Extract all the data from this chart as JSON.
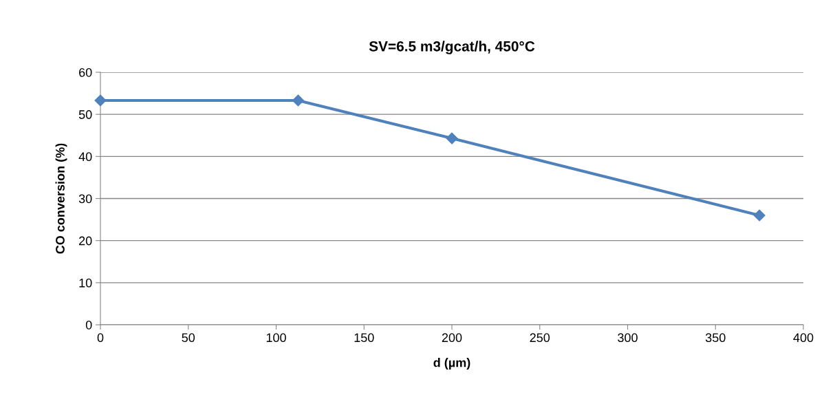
{
  "chart_data": {
    "type": "line",
    "title": "SV=6.5 m3/gcat/h, 450°C",
    "xlabel": "d (µm)",
    "ylabel": "CO conversion (%)",
    "x": [
      0,
      112.5,
      200,
      375
    ],
    "series": [
      {
        "color": "#4f81bd",
        "values": [
          53.3,
          53.3,
          44.3,
          26.0
        ]
      }
    ],
    "xlim": [
      0,
      400
    ],
    "xticks": [
      0,
      50,
      100,
      150,
      200,
      250,
      300,
      350,
      400
    ],
    "ylim": [
      0,
      60
    ],
    "yticks": [
      0,
      10,
      20,
      30,
      40,
      50,
      60
    ],
    "grid": "y",
    "marker": "diamond",
    "line_style": "solid",
    "legend": false
  }
}
